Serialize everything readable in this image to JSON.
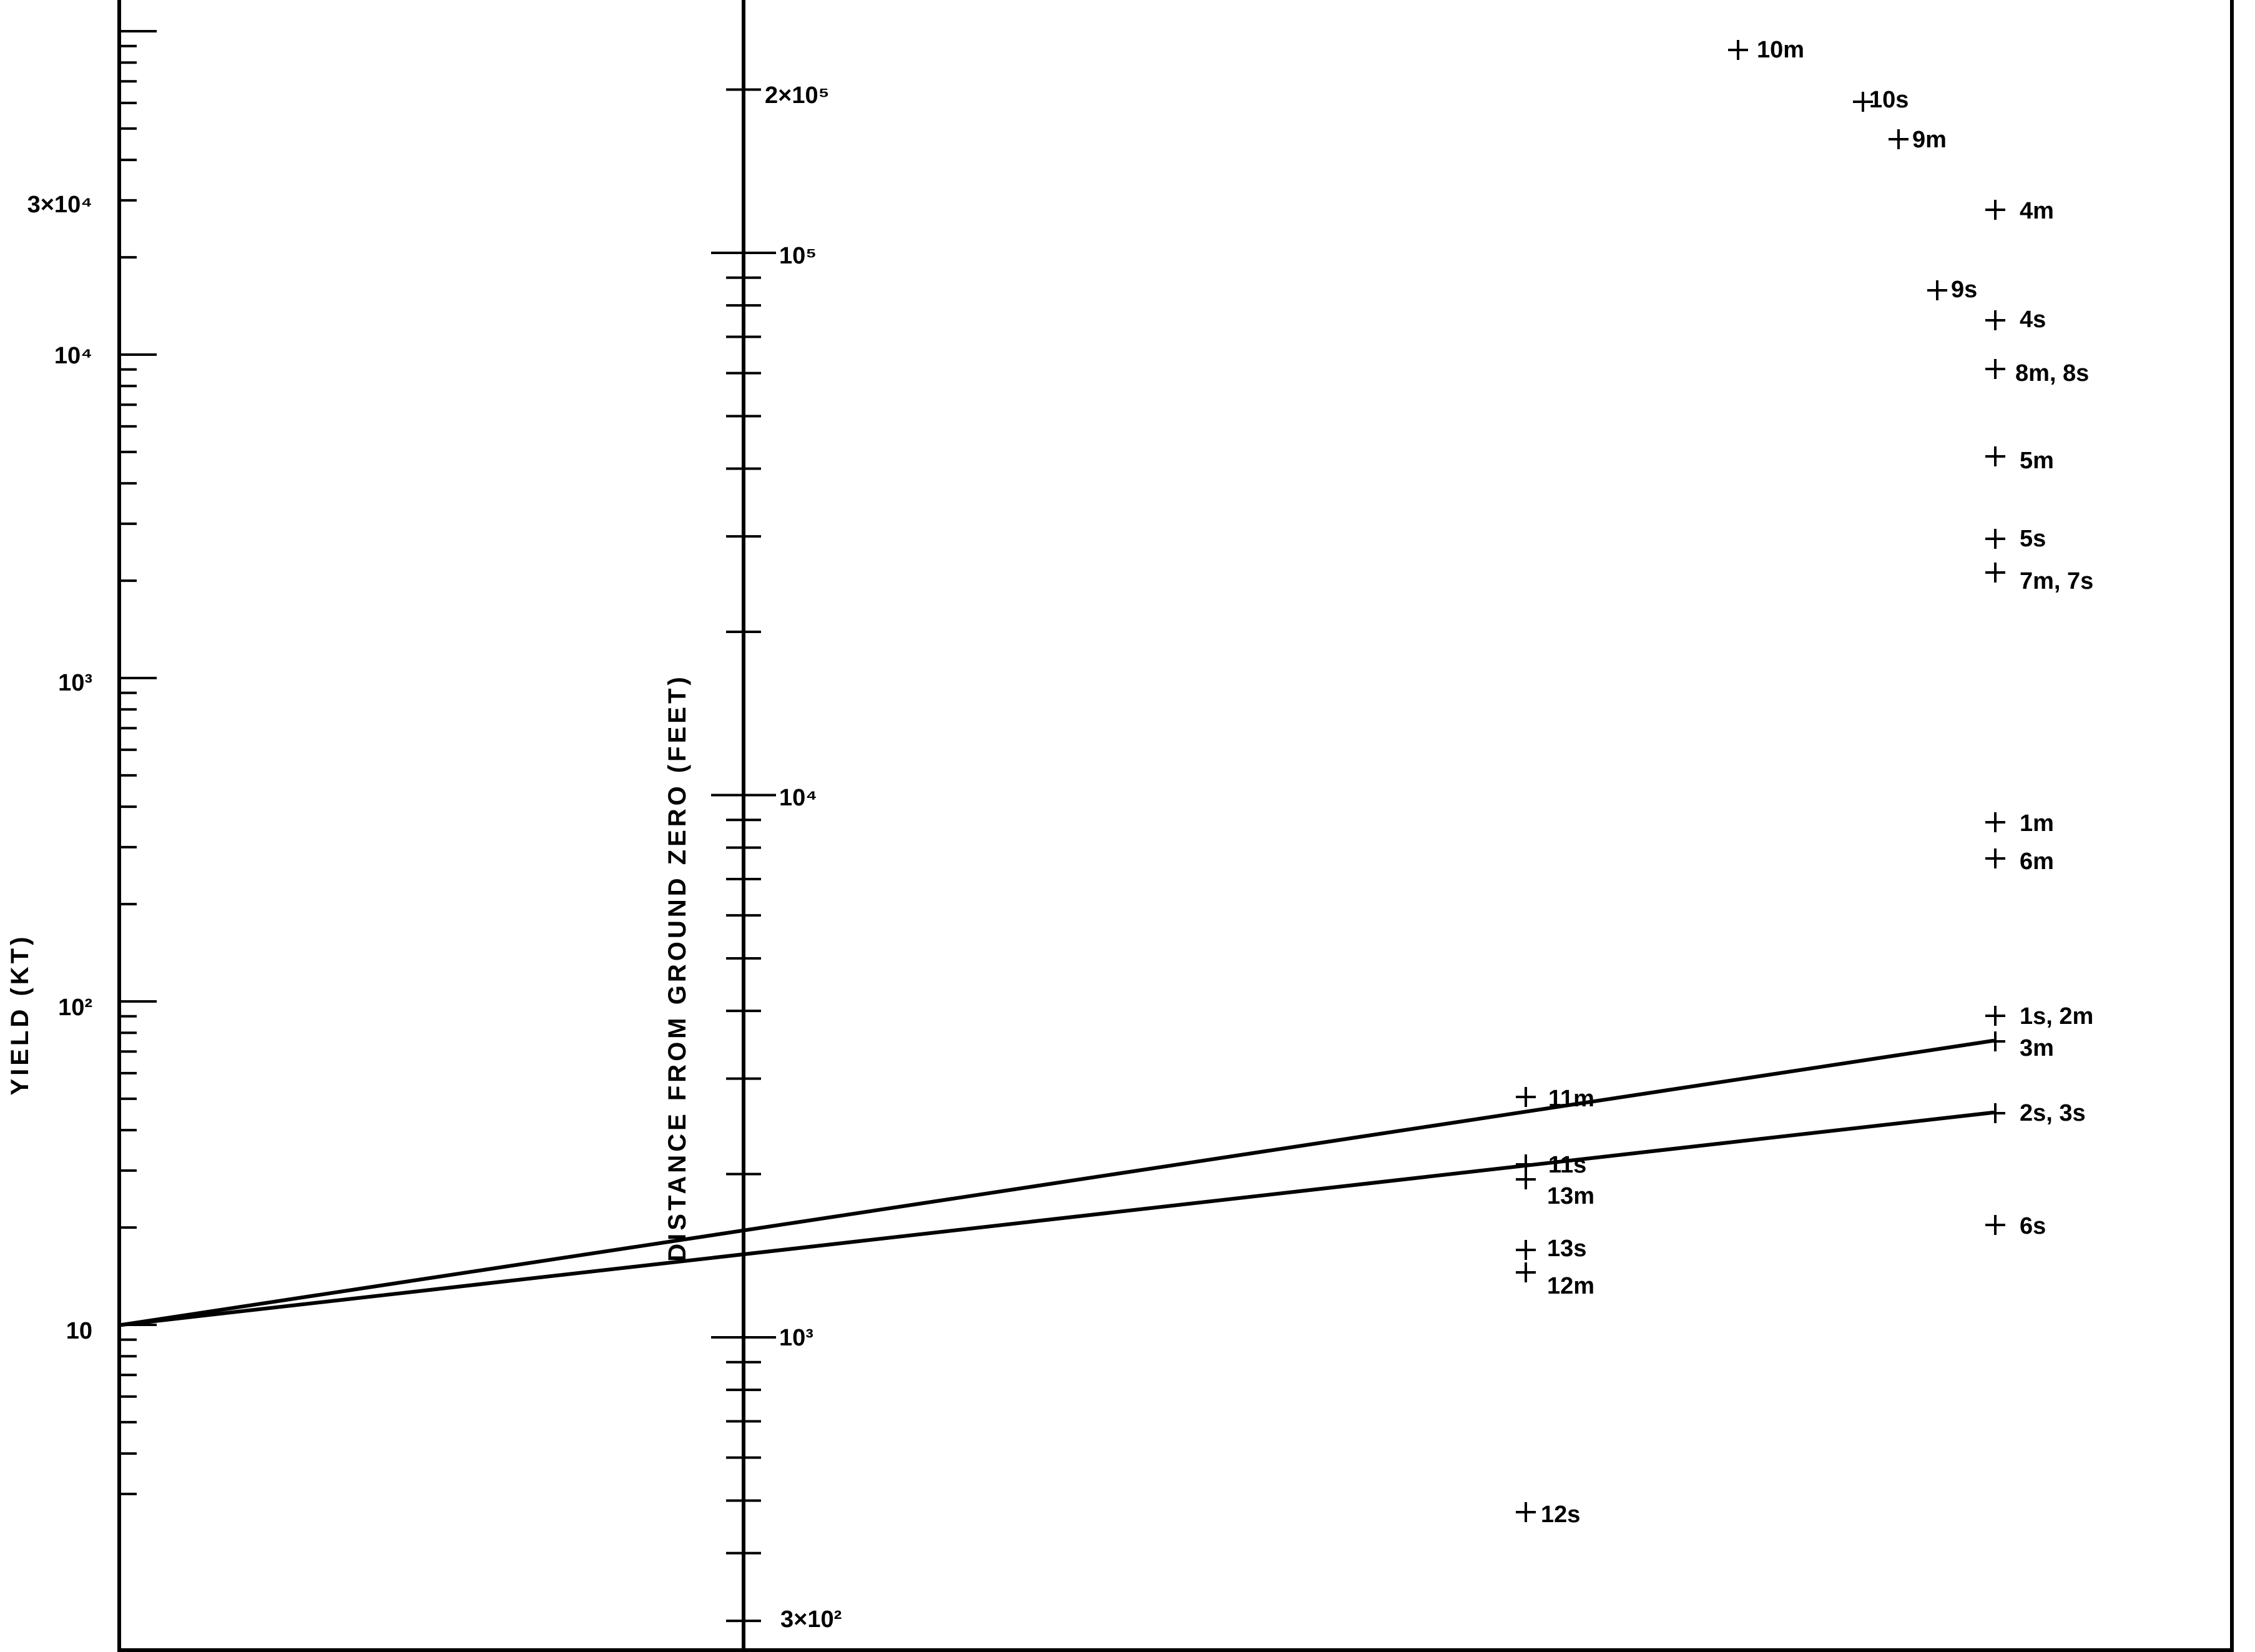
{
  "chart_data": {
    "type": "nomogram",
    "yield_axis": {
      "title": "YIELD (KT)",
      "scale": "log",
      "range": [
        2.5,
        100000
      ],
      "tick_labels": [
        {
          "value": 30000,
          "text": "3×10⁴"
        },
        {
          "value": 10000,
          "text": "10⁴"
        },
        {
          "value": 1000,
          "text": "10³"
        },
        {
          "value": 100,
          "text": "10²"
        },
        {
          "value": 10,
          "text": "10"
        }
      ]
    },
    "distance_axis": {
      "title": "DISTANCE FROM GROUND ZERO (FEET)",
      "scale": "log",
      "range": [
        300,
        250000
      ],
      "tick_labels": [
        {
          "value": 200000,
          "text": "2×10⁵"
        },
        {
          "value": 100000,
          "text": "10⁵"
        },
        {
          "value": 10000,
          "text": "10⁴"
        },
        {
          "value": 1000,
          "text": "10³"
        },
        {
          "value": 300,
          "text": "3×10²"
        }
      ]
    },
    "points": [
      {
        "label": "10m"
      },
      {
        "label": "10s"
      },
      {
        "label": "9m"
      },
      {
        "label": "4m"
      },
      {
        "label": "9s"
      },
      {
        "label": "4s"
      },
      {
        "label": "8m, 8s"
      },
      {
        "label": "5m"
      },
      {
        "label": "5s"
      },
      {
        "label": "7m, 7s"
      },
      {
        "label": "1m"
      },
      {
        "label": "6m"
      },
      {
        "label": "1s, 2m"
      },
      {
        "label": "3m"
      },
      {
        "label": "11m"
      },
      {
        "label": "2s, 3s"
      },
      {
        "label": "11s"
      },
      {
        "label": "13m"
      },
      {
        "label": "6s"
      },
      {
        "label": "13s"
      },
      {
        "label": "12m"
      },
      {
        "label": "12s"
      }
    ],
    "lines": [
      {
        "from_yield_kt": 10,
        "to_point": "3m"
      },
      {
        "from_yield_kt": 10,
        "to_point": "2s, 3s"
      }
    ]
  }
}
